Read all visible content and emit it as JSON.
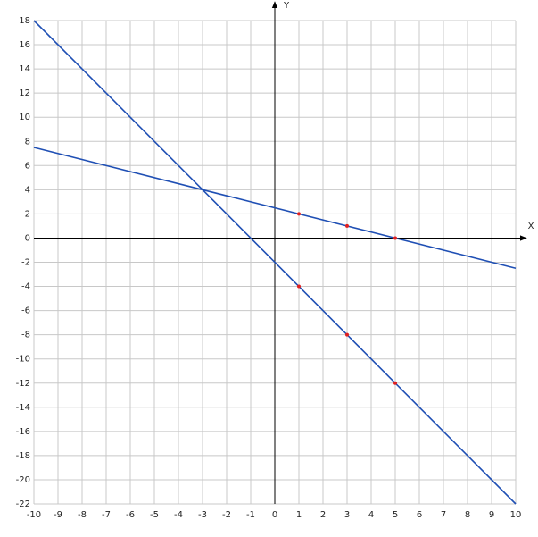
{
  "chart_data": {
    "type": "line",
    "x_label": "X",
    "y_label": "Y",
    "xlim": [
      -10,
      10
    ],
    "ylim": [
      -22,
      18
    ],
    "xticks": [
      -10,
      -9,
      -8,
      -7,
      -6,
      -5,
      -4,
      -3,
      -2,
      -1,
      0,
      1,
      2,
      3,
      4,
      5,
      6,
      7,
      8,
      9,
      10
    ],
    "yticks": [
      -22,
      -20,
      -18,
      -16,
      -14,
      -12,
      -10,
      -8,
      -6,
      -4,
      -2,
      0,
      2,
      4,
      6,
      8,
      10,
      12,
      14,
      16,
      18
    ],
    "grid": true,
    "series": [
      {
        "mode": "line",
        "color": "#1f4fb4",
        "x": [
          -10,
          10
        ],
        "values": [
          18,
          -22
        ]
      },
      {
        "mode": "line",
        "color": "#1f4fb4",
        "x": [
          -10,
          10
        ],
        "values": [
          7.5,
          -2.5
        ]
      },
      {
        "mode": "markers",
        "color": "#e02020",
        "x": [
          1,
          3,
          5
        ],
        "values": [
          -4,
          -8,
          -12
        ]
      },
      {
        "mode": "markers",
        "color": "#e02020",
        "x": [
          1,
          3,
          5
        ],
        "values": [
          2,
          1,
          0
        ]
      }
    ]
  }
}
